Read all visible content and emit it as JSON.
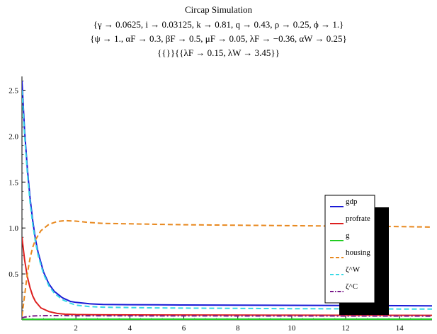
{
  "chart_data": {
    "type": "line",
    "title": "Circap Simulation",
    "subtitle_lines": [
      "{γ → 0.0625, i → 0.03125, k → 0.81, q → 0.43, ρ → 0.25, ϕ → 1.}",
      "{ψ → 1., αF → 0.3, βF → 0.5, μF → 0.05, λF → −0.36, αW → 0.25}",
      "{{}}{{λF → 0.15, λW → 3.45}}"
    ],
    "xlabel": "",
    "ylabel": "",
    "xlim": [
      0,
      15.2
    ],
    "ylim": [
      0,
      2.65
    ],
    "x_ticks": [
      2,
      4,
      6,
      8,
      10,
      12,
      14
    ],
    "x_tick_labels": [
      "2",
      "4",
      "6",
      "8",
      "10",
      "12",
      "14"
    ],
    "y_ticks": [
      0.5,
      1.0,
      1.5,
      2.0,
      2.5
    ],
    "y_tick_labels": [
      "0.5",
      "1.0",
      "1.5",
      "2.0",
      "2.5"
    ],
    "grid": false,
    "legend_position": "right",
    "series": [
      {
        "name": "gdp",
        "color": "#1a1ad6",
        "dash": "solid",
        "x": [
          0,
          0.1,
          0.2,
          0.3,
          0.4,
          0.5,
          0.6,
          0.8,
          1.0,
          1.2,
          1.5,
          1.8,
          2.0,
          2.5,
          3.0,
          4,
          5,
          6,
          8,
          10,
          12,
          14,
          15.2
        ],
        "y": [
          2.6,
          2.05,
          1.65,
          1.33,
          1.08,
          0.88,
          0.73,
          0.52,
          0.39,
          0.31,
          0.24,
          0.2,
          0.19,
          0.175,
          0.168,
          0.165,
          0.163,
          0.162,
          0.16,
          0.158,
          0.156,
          0.154,
          0.152
        ]
      },
      {
        "name": "profrate",
        "color": "#dd1f1f",
        "dash": "solid",
        "x": [
          0,
          0.1,
          0.2,
          0.3,
          0.4,
          0.5,
          0.7,
          1.0,
          1.3,
          1.6,
          2.0,
          3,
          4,
          6,
          8,
          10,
          12,
          15.2
        ],
        "y": [
          0.9,
          0.65,
          0.47,
          0.35,
          0.26,
          0.2,
          0.13,
          0.09,
          0.07,
          0.062,
          0.058,
          0.055,
          0.054,
          0.053,
          0.052,
          0.051,
          0.05,
          0.049
        ]
      },
      {
        "name": "g",
        "color": "#22cc22",
        "dash": "solid",
        "x": [
          0,
          1,
          3,
          6,
          10,
          15.2
        ],
        "y": [
          0.006,
          0.007,
          0.008,
          0.008,
          0.008,
          0.008
        ]
      },
      {
        "name": "housing",
        "color": "#e8881e",
        "dash": "dashed",
        "x": [
          0,
          0.1,
          0.2,
          0.3,
          0.4,
          0.5,
          0.7,
          1.0,
          1.3,
          1.6,
          2.0,
          2.5,
          3,
          4,
          5,
          6,
          8,
          10,
          12,
          14,
          15.2
        ],
        "y": [
          0.04,
          0.27,
          0.5,
          0.67,
          0.79,
          0.87,
          0.97,
          1.04,
          1.07,
          1.08,
          1.075,
          1.06,
          1.05,
          1.045,
          1.04,
          1.035,
          1.03,
          1.025,
          1.02,
          1.015,
          1.01
        ]
      },
      {
        "name": "ζ^W",
        "color": "#39d9e6",
        "dash": "dashed",
        "x": [
          0,
          0.1,
          0.2,
          0.3,
          0.4,
          0.5,
          0.6,
          0.8,
          1.0,
          1.2,
          1.5,
          1.8,
          2.0,
          2.5,
          3.0,
          4,
          5,
          6,
          8,
          10,
          12,
          14,
          15.2
        ],
        "y": [
          2.5,
          2.0,
          1.6,
          1.28,
          1.04,
          0.85,
          0.7,
          0.5,
          0.37,
          0.29,
          0.22,
          0.18,
          0.16,
          0.145,
          0.138,
          0.133,
          0.13,
          0.128,
          0.125,
          0.122,
          0.12,
          0.118,
          0.117
        ]
      },
      {
        "name": "ζ^C",
        "color": "#7a1a8a",
        "dash": "dashdot",
        "x": [
          0,
          0.1,
          0.2,
          0.4,
          0.6,
          1.0,
          1.5,
          2,
          4,
          6,
          10,
          15.2
        ],
        "y": [
          0.02,
          0.03,
          0.035,
          0.042,
          0.045,
          0.046,
          0.046,
          0.045,
          0.044,
          0.043,
          0.042,
          0.041
        ]
      }
    ]
  }
}
